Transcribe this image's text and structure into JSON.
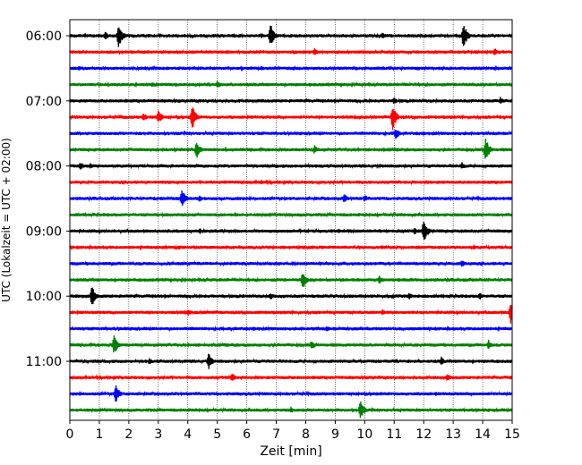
{
  "chart_data": {
    "type": "line",
    "xlabel": "Zeit  [min]",
    "ylabel": "UTC (Lokalzeit = UTC + 02:00)",
    "xlim": [
      0,
      15
    ],
    "x_ticks": [
      0,
      1,
      2,
      3,
      4,
      5,
      6,
      7,
      8,
      9,
      10,
      11,
      12,
      13,
      14,
      15
    ],
    "x_grid": true,
    "y_ticks": [
      "06:00",
      "07:00",
      "08:00",
      "09:00",
      "10:00",
      "11:00"
    ],
    "y_tick_rows": [
      0,
      4,
      8,
      12,
      16,
      20
    ],
    "line_colors": [
      "#000000",
      "#ff0000",
      "#0000ff",
      "#008000"
    ],
    "traces": [
      {
        "start": "06:00",
        "color": "#000000",
        "events": [
          {
            "t": 1.2,
            "amp": 0.35
          },
          {
            "t": 1.65,
            "amp": 1.0
          },
          {
            "t": 6.8,
            "amp": 1.0
          },
          {
            "t": 10.6,
            "amp": 0.3
          },
          {
            "t": 13.35,
            "amp": 1.0
          }
        ]
      },
      {
        "start": "06:15",
        "color": "#ff0000",
        "events": [
          {
            "t": 8.3,
            "amp": 0.3
          },
          {
            "t": 14.4,
            "amp": 0.35
          }
        ]
      },
      {
        "start": "06:30",
        "color": "#0000ff",
        "events": [
          {
            "t": 0.3,
            "amp": 0.2
          },
          {
            "t": 6.5,
            "amp": 0.2
          },
          {
            "t": 11.8,
            "amp": 0.2
          }
        ]
      },
      {
        "start": "06:45",
        "color": "#008000",
        "events": [
          {
            "t": 2.8,
            "amp": 0.2
          },
          {
            "t": 5.0,
            "amp": 0.3
          }
        ]
      },
      {
        "start": "07:00",
        "color": "#000000",
        "events": [
          {
            "t": 11.0,
            "amp": 0.3
          },
          {
            "t": 14.6,
            "amp": 0.3
          }
        ]
      },
      {
        "start": "07:15",
        "color": "#ff0000",
        "events": [
          {
            "t": 2.5,
            "amp": 0.35
          },
          {
            "t": 3.0,
            "amp": 0.6
          },
          {
            "t": 4.15,
            "amp": 1.0
          },
          {
            "t": 10.95,
            "amp": 1.0
          }
        ]
      },
      {
        "start": "07:30",
        "color": "#0000ff",
        "events": [
          {
            "t": 11.05,
            "amp": 0.5
          }
        ]
      },
      {
        "start": "07:45",
        "color": "#008000",
        "events": [
          {
            "t": 4.3,
            "amp": 0.7
          },
          {
            "t": 8.3,
            "amp": 0.35
          },
          {
            "t": 14.1,
            "amp": 1.0
          }
        ]
      },
      {
        "start": "08:00",
        "color": "#000000",
        "events": [
          {
            "t": 0.35,
            "amp": 0.35
          },
          {
            "t": 0.7,
            "amp": 0.25
          },
          {
            "t": 7.0,
            "amp": 0.2
          },
          {
            "t": 13.3,
            "amp": 0.3
          }
        ]
      },
      {
        "start": "08:15",
        "color": "#ff0000",
        "events": [
          {
            "t": 6.5,
            "amp": 0.2
          }
        ]
      },
      {
        "start": "08:30",
        "color": "#0000ff",
        "events": [
          {
            "t": 3.8,
            "amp": 0.75
          },
          {
            "t": 4.4,
            "amp": 0.3
          },
          {
            "t": 9.3,
            "amp": 0.4
          },
          {
            "t": 10.0,
            "amp": 0.3
          }
        ]
      },
      {
        "start": "08:45",
        "color": "#008000",
        "events": [
          {
            "t": 5.6,
            "amp": 0.2
          }
        ]
      },
      {
        "start": "09:00",
        "color": "#000000",
        "events": [
          {
            "t": 4.4,
            "amp": 0.25
          },
          {
            "t": 11.7,
            "amp": 0.3
          },
          {
            "t": 12.0,
            "amp": 1.0
          }
        ]
      },
      {
        "start": "09:15",
        "color": "#ff0000",
        "events": [
          {
            "t": 3.7,
            "amp": 0.2
          },
          {
            "t": 13.7,
            "amp": 0.2
          }
        ]
      },
      {
        "start": "09:30",
        "color": "#0000ff",
        "events": [
          {
            "t": 13.3,
            "amp": 0.3
          }
        ]
      },
      {
        "start": "09:45",
        "color": "#008000",
        "events": [
          {
            "t": 7.9,
            "amp": 0.75
          },
          {
            "t": 10.5,
            "amp": 0.35
          }
        ]
      },
      {
        "start": "10:00",
        "color": "#000000",
        "events": [
          {
            "t": 0.75,
            "amp": 0.8
          },
          {
            "t": 6.8,
            "amp": 0.3
          },
          {
            "t": 11.5,
            "amp": 0.3
          },
          {
            "t": 13.9,
            "amp": 0.3
          }
        ]
      },
      {
        "start": "10:15",
        "color": "#ff0000",
        "events": [
          {
            "t": 4.0,
            "amp": 0.3
          },
          {
            "t": 10.6,
            "amp": 0.25
          },
          {
            "t": 14.95,
            "amp": 1.0
          }
        ]
      },
      {
        "start": "10:30",
        "color": "#0000ff",
        "events": [
          {
            "t": 8.7,
            "amp": 0.25
          }
        ]
      },
      {
        "start": "10:45",
        "color": "#008000",
        "events": [
          {
            "t": 1.5,
            "amp": 0.75
          },
          {
            "t": 8.2,
            "amp": 0.4
          },
          {
            "t": 14.2,
            "amp": 0.4
          }
        ]
      },
      {
        "start": "11:00",
        "color": "#000000",
        "events": [
          {
            "t": 2.7,
            "amp": 0.25
          },
          {
            "t": 4.7,
            "amp": 0.7
          },
          {
            "t": 12.6,
            "amp": 0.35
          }
        ]
      },
      {
        "start": "11:15",
        "color": "#ff0000",
        "events": [
          {
            "t": 5.5,
            "amp": 0.4
          },
          {
            "t": 12.8,
            "amp": 0.3
          }
        ]
      },
      {
        "start": "11:30",
        "color": "#0000ff",
        "events": [
          {
            "t": 1.55,
            "amp": 0.75
          },
          {
            "t": 12.4,
            "amp": 0.2
          }
        ]
      },
      {
        "start": "11:45",
        "color": "#008000",
        "events": [
          {
            "t": 7.5,
            "amp": 0.25
          },
          {
            "t": 9.85,
            "amp": 0.75
          }
        ]
      }
    ]
  }
}
